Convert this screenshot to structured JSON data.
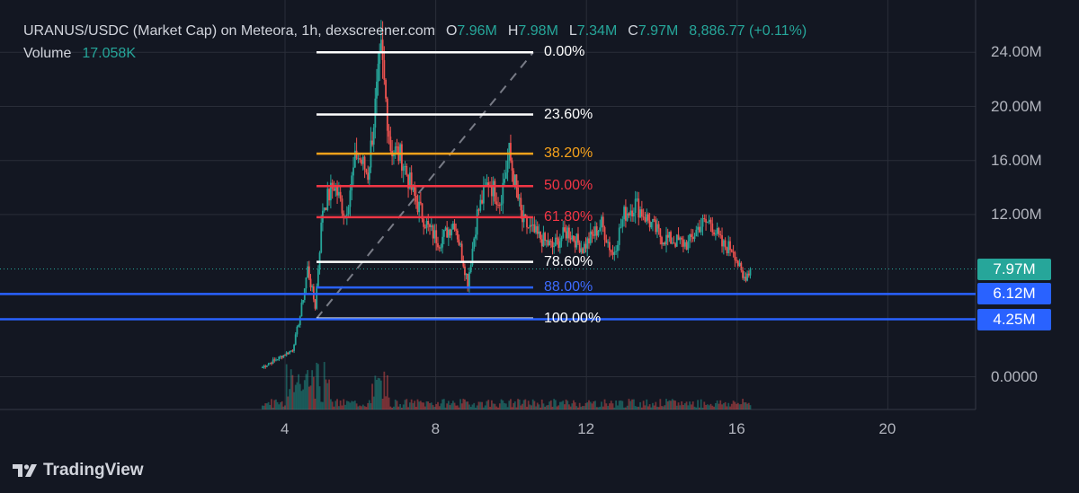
{
  "header": {
    "symbol": "URANUS/USDC (Market Cap) on Meteora, 1h, dexscreener.com",
    "o_key": "O",
    "o_val": "7.96M",
    "h_key": "H",
    "h_val": "7.98M",
    "l_key": "L",
    "l_val": "7.34M",
    "c_key": "C",
    "c_val": "7.97M",
    "change": "8,886.77 (+0.11%)",
    "volume_key": "Volume",
    "volume_val": "17.058K"
  },
  "brand": {
    "name": "TradingView"
  },
  "colors": {
    "background": "#131722",
    "up": "#26a69a",
    "down": "#ef5350",
    "fib_white": "#ffffff",
    "fib_orange": "#f7a21b",
    "fib_red": "#f23645",
    "fib_blue": "#2962ff"
  },
  "chart_data": {
    "type": "candlestick",
    "y_axis": {
      "ticks": [
        "24.00M",
        "20.00M",
        "16.00M",
        "12.00M",
        "0.0000"
      ],
      "range_millions": [
        0,
        24
      ],
      "grid": true
    },
    "x_axis": {
      "ticks": [
        "4",
        "8",
        "12",
        "16",
        "20"
      ],
      "range_days": [
        4,
        20
      ]
    },
    "fibonacci": [
      {
        "label": "0.00%",
        "level": 0,
        "price": 24.0,
        "color": "#ffffff"
      },
      {
        "label": "23.60%",
        "level": 0.236,
        "price": 19.4,
        "color": "#ffffff"
      },
      {
        "label": "38.20%",
        "level": 0.382,
        "price": 16.5,
        "color": "#f7a21b"
      },
      {
        "label": "50.00%",
        "level": 0.5,
        "price": 14.1,
        "color": "#f23645"
      },
      {
        "label": "61.80%",
        "level": 0.618,
        "price": 11.8,
        "color": "#f23645"
      },
      {
        "label": "78.60%",
        "level": 0.786,
        "price": 8.5,
        "color": "#ffffff"
      },
      {
        "label": "88.00%",
        "level": 0.88,
        "price": 6.6,
        "color": "#2962ff"
      },
      {
        "label": "100.00%",
        "level": 1,
        "price": 4.3,
        "color": "#ffffff"
      }
    ],
    "horizontal_lines": [
      {
        "label": "6.12M",
        "price": 6.12,
        "color": "#2962ff"
      },
      {
        "label": "4.25M",
        "price": 4.25,
        "color": "#2962ff"
      }
    ],
    "last_price": {
      "label": "7.97M",
      "price": 7.97,
      "color": "#26a69a"
    },
    "candles_close_millions": [
      [
        3.4,
        0.7
      ],
      [
        4.2,
        2.0
      ],
      [
        4.4,
        4.5
      ],
      [
        4.6,
        8.0
      ],
      [
        4.8,
        5.2
      ],
      [
        5.0,
        12.5
      ],
      [
        5.3,
        14.2
      ],
      [
        5.6,
        12.0
      ],
      [
        5.9,
        16.5
      ],
      [
        6.2,
        15.0
      ],
      [
        6.55,
        23.9
      ],
      [
        6.8,
        17.0
      ],
      [
        7.1,
        16.2
      ],
      [
        7.4,
        13.5
      ],
      [
        7.8,
        11.0
      ],
      [
        8.1,
        10.0
      ],
      [
        8.5,
        11.5
      ],
      [
        8.85,
        7.0
      ],
      [
        9.1,
        12.0
      ],
      [
        9.4,
        14.5
      ],
      [
        9.7,
        13.0
      ],
      [
        9.95,
        16.5
      ],
      [
        10.3,
        11.5
      ],
      [
        10.7,
        10.4
      ],
      [
        11.1,
        9.6
      ],
      [
        11.5,
        10.8
      ],
      [
        11.9,
        9.5
      ],
      [
        12.4,
        11.3
      ],
      [
        12.7,
        9.0
      ],
      [
        13.0,
        12.0
      ],
      [
        13.3,
        12.8
      ],
      [
        13.6,
        11.7
      ],
      [
        14.0,
        10.3
      ],
      [
        14.4,
        10.0
      ],
      [
        14.7,
        9.8
      ],
      [
        15.0,
        11.2
      ],
      [
        15.3,
        11.5
      ],
      [
        15.6,
        9.7
      ],
      [
        15.9,
        9.5
      ],
      [
        16.15,
        7.2
      ],
      [
        16.35,
        7.97
      ]
    ]
  }
}
